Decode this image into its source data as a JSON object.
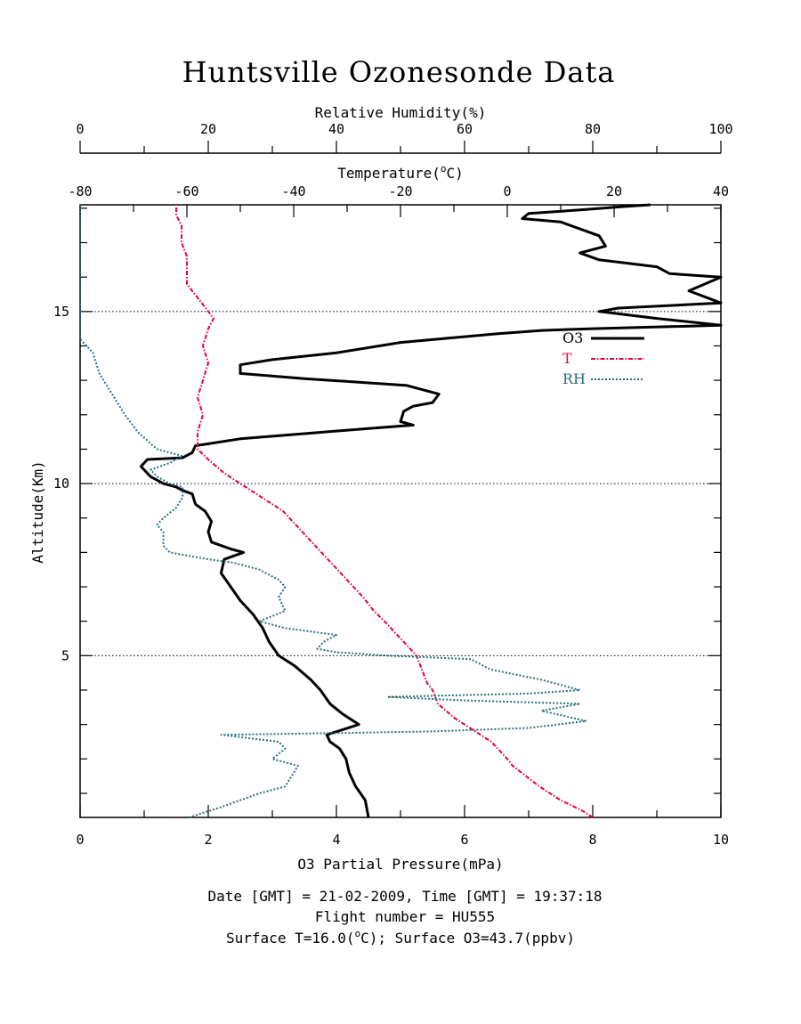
{
  "chart_data": {
    "type": "line",
    "title": "Huntsville Ozonesonde Data",
    "ylabel": "Altitude(Km)",
    "ylim": [
      0.3,
      18.1
    ],
    "yticks": [
      5,
      10,
      15
    ],
    "ytick_labels": [
      "5",
      "10",
      "15"
    ],
    "axes": {
      "o3": {
        "label": "O3 Partial Pressure(mPa)",
        "range": [
          0,
          10
        ],
        "ticks": [
          "0",
          "2",
          "4",
          "6",
          "8",
          "10"
        ],
        "position": "bottom"
      },
      "temperature": {
        "label_main": "Temperature(",
        "label_sup": "o",
        "label_end": "C)",
        "range": [
          -80,
          40
        ],
        "ticks": [
          "-80",
          "-60",
          "-40",
          "-20",
          "0",
          "20",
          "40"
        ],
        "position": "top"
      },
      "rh": {
        "label": "Relative Humidity(%)",
        "range": [
          0,
          100
        ],
        "ticks": [
          "0",
          "20",
          "40",
          "60",
          "80",
          "100"
        ],
        "position": "top"
      }
    },
    "reference_lines": [
      5,
      10,
      15
    ],
    "legend": {
      "position": "upper-right",
      "entries": [
        "O3",
        "T",
        "RH"
      ]
    },
    "series": [
      {
        "name": "O3",
        "axis": "o3",
        "color": "#000000",
        "style": "solid",
        "width": 3,
        "points": [
          [
            4.5,
            0.3
          ],
          [
            4.45,
            0.8
          ],
          [
            4.3,
            1.2
          ],
          [
            4.2,
            1.6
          ],
          [
            4.15,
            2.0
          ],
          [
            4.05,
            2.3
          ],
          [
            3.9,
            2.5
          ],
          [
            3.85,
            2.7
          ],
          [
            4.1,
            2.85
          ],
          [
            4.35,
            3.0
          ],
          [
            4.1,
            3.3
          ],
          [
            3.9,
            3.6
          ],
          [
            3.75,
            4.0
          ],
          [
            3.6,
            4.3
          ],
          [
            3.35,
            4.7
          ],
          [
            3.1,
            5.0
          ],
          [
            2.95,
            5.4
          ],
          [
            2.85,
            5.8
          ],
          [
            2.7,
            6.2
          ],
          [
            2.5,
            6.6
          ],
          [
            2.35,
            7.0
          ],
          [
            2.2,
            7.4
          ],
          [
            2.25,
            7.8
          ],
          [
            2.55,
            8.0
          ],
          [
            2.35,
            8.1
          ],
          [
            2.05,
            8.3
          ],
          [
            2.0,
            8.6
          ],
          [
            2.05,
            8.9
          ],
          [
            1.95,
            9.2
          ],
          [
            1.8,
            9.4
          ],
          [
            1.75,
            9.7
          ],
          [
            1.6,
            9.8
          ],
          [
            1.5,
            9.9
          ],
          [
            1.3,
            10.0
          ],
          [
            1.1,
            10.2
          ],
          [
            0.95,
            10.5
          ],
          [
            1.05,
            10.7
          ],
          [
            1.6,
            10.75
          ],
          [
            1.75,
            10.9
          ],
          [
            1.8,
            11.1
          ],
          [
            2.5,
            11.3
          ],
          [
            3.5,
            11.45
          ],
          [
            4.5,
            11.6
          ],
          [
            5.2,
            11.7
          ],
          [
            5.0,
            11.8
          ],
          [
            5.05,
            12.1
          ],
          [
            5.2,
            12.25
          ],
          [
            5.5,
            12.35
          ],
          [
            5.6,
            12.6
          ],
          [
            5.1,
            12.85
          ],
          [
            3.5,
            13.05
          ],
          [
            2.5,
            13.2
          ],
          [
            2.5,
            13.45
          ],
          [
            3.0,
            13.6
          ],
          [
            4.0,
            13.8
          ],
          [
            5.0,
            14.1
          ],
          [
            6.5,
            14.35
          ],
          [
            7.2,
            14.45
          ],
          [
            8.0,
            14.5
          ],
          [
            10.0,
            14.6
          ],
          [
            9.0,
            14.8
          ],
          [
            8.1,
            15.0
          ],
          [
            8.4,
            15.1
          ],
          [
            10.0,
            15.25
          ],
          [
            9.5,
            15.6
          ],
          [
            10.0,
            16.0
          ],
          [
            9.2,
            16.1
          ],
          [
            9.0,
            16.3
          ],
          [
            8.1,
            16.5
          ],
          [
            7.8,
            16.7
          ],
          [
            8.2,
            16.9
          ],
          [
            8.1,
            17.2
          ],
          [
            7.8,
            17.4
          ],
          [
            7.5,
            17.6
          ],
          [
            6.9,
            17.7
          ],
          [
            7.0,
            17.85
          ],
          [
            7.8,
            17.95
          ],
          [
            8.5,
            18.05
          ],
          [
            8.9,
            18.1
          ]
        ]
      },
      {
        "name": "T",
        "axis": "temperature",
        "color": "#e8003a",
        "style": "dot-dash",
        "width": 2,
        "points": [
          [
            16.0,
            0.3
          ],
          [
            14,
            0.5
          ],
          [
            10,
            0.8
          ],
          [
            6,
            1.2
          ],
          [
            1,
            1.8
          ],
          [
            0,
            2.0
          ],
          [
            -3,
            2.5
          ],
          [
            -7,
            2.9
          ],
          [
            -10,
            3.2
          ],
          [
            -13,
            3.6
          ],
          [
            -14,
            4.0
          ],
          [
            -15,
            4.2
          ],
          [
            -16,
            4.6
          ],
          [
            -17,
            5.0
          ],
          [
            -20,
            5.5
          ],
          [
            -23,
            6.0
          ],
          [
            -25,
            6.3
          ],
          [
            -27,
            6.7
          ],
          [
            -30,
            7.2
          ],
          [
            -33,
            7.7
          ],
          [
            -36,
            8.2
          ],
          [
            -39,
            8.7
          ],
          [
            -42,
            9.2
          ],
          [
            -46,
            9.6
          ],
          [
            -50,
            10.0
          ],
          [
            -53,
            10.3
          ],
          [
            -56,
            10.7
          ],
          [
            -58,
            11.0
          ],
          [
            -58,
            11.5
          ],
          [
            -57,
            12.0
          ],
          [
            -58,
            12.5
          ],
          [
            -57,
            13.0
          ],
          [
            -56,
            13.5
          ],
          [
            -57,
            14.0
          ],
          [
            -56,
            14.5
          ],
          [
            -55,
            14.8
          ],
          [
            -56,
            15.0
          ],
          [
            -58,
            15.4
          ],
          [
            -60,
            15.8
          ],
          [
            -60,
            16.2
          ],
          [
            -60,
            16.6
          ],
          [
            -61,
            17.0
          ],
          [
            -61,
            17.5
          ],
          [
            -62,
            17.8
          ],
          [
            -62,
            18.1
          ]
        ]
      },
      {
        "name": "RH",
        "axis": "rh",
        "color": "#2a6f7f",
        "style": "dotted",
        "width": 2,
        "points": [
          [
            17,
            0.3
          ],
          [
            22,
            0.6
          ],
          [
            28,
            1.0
          ],
          [
            32,
            1.2
          ],
          [
            33,
            1.5
          ],
          [
            34,
            1.8
          ],
          [
            30,
            2.0
          ],
          [
            32,
            2.3
          ],
          [
            31,
            2.5
          ],
          [
            22,
            2.7
          ],
          [
            40,
            2.75
          ],
          [
            55,
            2.8
          ],
          [
            70,
            2.9
          ],
          [
            79,
            3.1
          ],
          [
            72,
            3.4
          ],
          [
            78,
            3.6
          ],
          [
            60,
            3.7
          ],
          [
            48,
            3.8
          ],
          [
            70,
            3.9
          ],
          [
            78,
            4.0
          ],
          [
            72,
            4.3
          ],
          [
            64,
            4.6
          ],
          [
            61,
            4.9
          ],
          [
            48,
            5.0
          ],
          [
            40,
            5.1
          ],
          [
            37,
            5.2
          ],
          [
            38,
            5.4
          ],
          [
            40,
            5.6
          ],
          [
            32,
            5.8
          ],
          [
            28,
            6.0
          ],
          [
            32,
            6.3
          ],
          [
            31,
            6.7
          ],
          [
            32,
            7.0
          ],
          [
            31,
            7.2
          ],
          [
            28,
            7.5
          ],
          [
            24,
            7.7
          ],
          [
            20,
            7.8
          ],
          [
            14,
            8.0
          ],
          [
            13,
            8.2
          ],
          [
            13,
            8.6
          ],
          [
            12,
            8.8
          ],
          [
            13,
            9.0
          ],
          [
            15,
            9.3
          ],
          [
            16,
            9.6
          ],
          [
            16,
            9.9
          ],
          [
            14,
            10.0
          ],
          [
            12,
            10.2
          ],
          [
            11,
            10.4
          ],
          [
            14,
            10.6
          ],
          [
            16,
            10.8
          ],
          [
            12,
            11.0
          ],
          [
            9,
            11.5
          ],
          [
            7,
            12.0
          ],
          [
            5,
            12.6
          ],
          [
            3,
            13.2
          ],
          [
            2,
            13.8
          ],
          [
            0,
            14.2
          ],
          [
            0,
            16.0
          ],
          [
            0,
            18.1
          ]
        ]
      }
    ]
  },
  "footer": {
    "line1": "Date [GMT] = 21-02-2009,  Time [GMT] = 19:37:18",
    "line2": "Flight number = HU555",
    "line3a": "Surface T=16.0(",
    "line3sup": "o",
    "line3b": "C); Surface O3=43.7(ppbv)"
  },
  "colors": {
    "o3": "#000000",
    "temperature": "#e8003a",
    "rh": "#2a6f7f"
  }
}
